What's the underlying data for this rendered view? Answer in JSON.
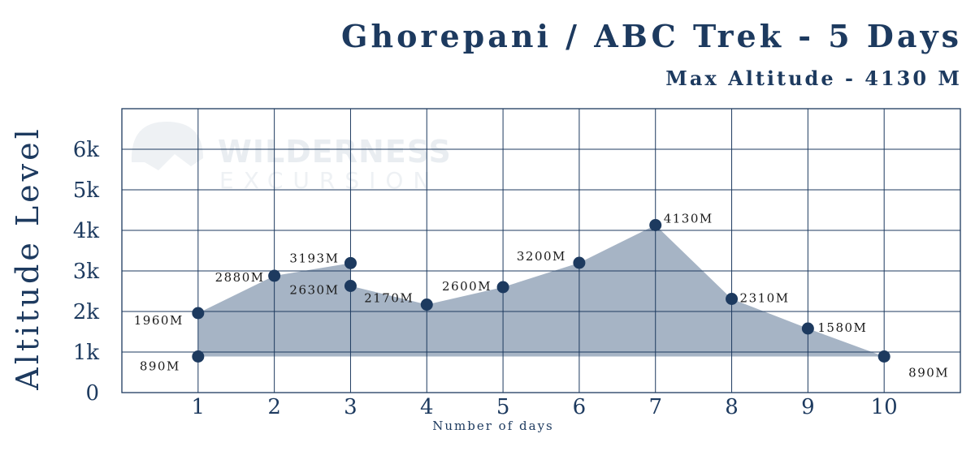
{
  "title": "Ghorepani / ABC Trek - 5 Days",
  "subtitle": "Max Altitude - 4130 M",
  "watermark": {
    "line1": "WILDERNESS",
    "line2": "EXCURSION"
  },
  "colors": {
    "primary": "#1d3a5f",
    "fill": "#a1b0c2",
    "grid": "#1d3a5f"
  },
  "chart_data": {
    "type": "area",
    "xlabel": "Number of days",
    "ylabel": "Altitude Level",
    "xlim": [
      0,
      11
    ],
    "ylim": [
      0,
      7000
    ],
    "x_ticks": [
      "1",
      "2",
      "3",
      "4",
      "5",
      "6",
      "7",
      "8",
      "9",
      "10"
    ],
    "y_ticks": [
      {
        "value": 0,
        "label": "0"
      },
      {
        "value": 1000,
        "label": "1k"
      },
      {
        "value": 2000,
        "label": "2k"
      },
      {
        "value": 3000,
        "label": "3k"
      },
      {
        "value": 4000,
        "label": "4k"
      },
      {
        "value": 5000,
        "label": "5k"
      },
      {
        "value": 6000,
        "label": "6k"
      }
    ],
    "grid": true,
    "points": [
      {
        "day": 1,
        "altitude": 890,
        "label": "890M"
      },
      {
        "day": 1,
        "altitude": 1960,
        "label": "1960M"
      },
      {
        "day": 2,
        "altitude": 2880,
        "label": "2880M"
      },
      {
        "day": 3,
        "altitude": 3193,
        "label": "3193M"
      },
      {
        "day": 3,
        "altitude": 2630,
        "label": "2630M"
      },
      {
        "day": 4,
        "altitude": 2170,
        "label": "2170M"
      },
      {
        "day": 5,
        "altitude": 2600,
        "label": "2600M"
      },
      {
        "day": 6,
        "altitude": 3200,
        "label": "3200M"
      },
      {
        "day": 7,
        "altitude": 4130,
        "label": "4130M"
      },
      {
        "day": 8,
        "altitude": 2310,
        "label": "2310M"
      },
      {
        "day": 9,
        "altitude": 1580,
        "label": "1580M"
      },
      {
        "day": 10,
        "altitude": 890,
        "label": "890M"
      }
    ]
  }
}
